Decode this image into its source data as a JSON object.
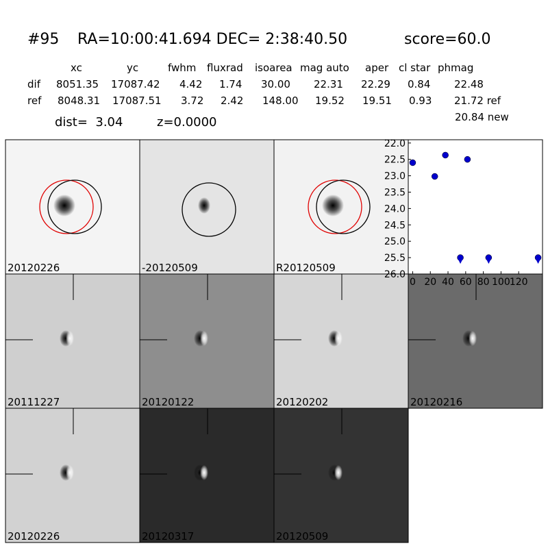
{
  "header": {
    "id": "#95",
    "coords": "RA=10:00:41.694 DEC= 2:38:40.50",
    "score": "score=60.0"
  },
  "table": {
    "columns": [
      "xc",
      "yc",
      "fwhm",
      "fluxrad",
      "isoarea",
      "mag auto",
      "aper",
      "cl star",
      "phmag"
    ],
    "rows": [
      [
        "dif",
        "8051.35",
        "17087.42",
        "4.42",
        "1.74",
        "30.00",
        "22.31",
        "22.29",
        "0.84",
        "22.48"
      ],
      [
        "ref",
        "8048.31",
        "17087.51",
        "3.72",
        "2.42",
        "148.00",
        "19.52",
        "19.51",
        "0.93",
        "21.72 ref"
      ]
    ],
    "extra": "20.84 new"
  },
  "summary": {
    "dist": "dist=  3.04",
    "z": "z=0.0000"
  },
  "stamps": [
    {
      "label": "20120226"
    },
    {
      "label": "-20120509"
    },
    {
      "label": "R20120509"
    },
    {
      "label": "20111227"
    },
    {
      "label": "20120122"
    },
    {
      "label": "20120202"
    },
    {
      "label": "20120216"
    },
    {
      "label": "20120226",
      "label_color": "#ff0000"
    },
    {
      "label": "20120317"
    },
    {
      "label": "20120509"
    }
  ],
  "chart_data": {
    "type": "scatter",
    "series": [
      {
        "color": "#0000cc",
        "marker": "circle",
        "x": [
          0,
          25,
          37,
          62
        ],
        "values": [
          22.6,
          23.02,
          22.37,
          22.5
        ]
      },
      {
        "color": "#0000cc",
        "marker": "limit",
        "x": [
          54,
          86,
          142
        ],
        "values": [
          25.5,
          25.5,
          25.5
        ]
      }
    ],
    "xlim": [
      -5,
      147
    ],
    "ylim": [
      21.9,
      26.0
    ],
    "y_inverted": true,
    "xticks": [
      0,
      20,
      40,
      60,
      80,
      100,
      120
    ],
    "yticks": [
      {
        "value": 22,
        "label": "22.0"
      },
      {
        "value": 22.5,
        "label": "22.5"
      },
      {
        "value": 23,
        "label": "23.0"
      },
      {
        "value": 23.5,
        "label": "23.5"
      },
      {
        "value": 24,
        "label": "24.0"
      },
      {
        "value": 24.5,
        "label": "24.5"
      },
      {
        "value": 25,
        "label": "25.0"
      },
      {
        "value": 25.5,
        "label": "25.5"
      },
      {
        "value": 26,
        "label": "26.0"
      }
    ]
  }
}
